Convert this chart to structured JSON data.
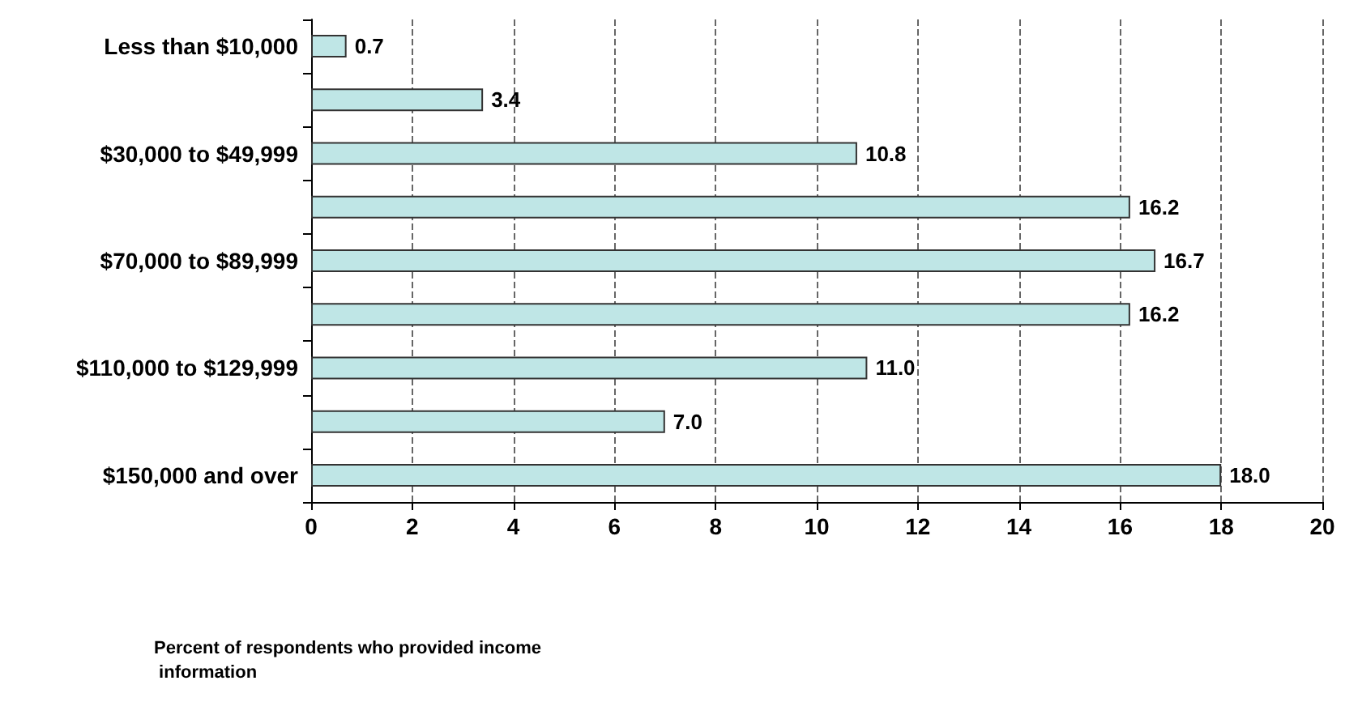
{
  "chart_data": {
    "type": "bar",
    "orientation": "horizontal",
    "annotations": [
      "Percent of respondents who provided income information"
    ],
    "categories": [
      "Less than $10,000",
      null,
      "$30,000 to $49,999",
      null,
      "$70,000 to $89,999",
      null,
      "$110,000 to $129,999",
      null,
      "$150,000 and over"
    ],
    "values": [
      0.7,
      3.4,
      10.8,
      16.2,
      16.7,
      16.2,
      11.0,
      7.0,
      18.0
    ],
    "value_labels": [
      "0.7",
      "3.4",
      "10.8",
      "16.2",
      "16.7",
      "16.2",
      "11.0",
      "7.0",
      "18.0"
    ],
    "color": "#bfe6e6",
    "xlim": [
      0,
      20
    ],
    "xticks": [
      0,
      2,
      4,
      6,
      8,
      10,
      12,
      14,
      16,
      18,
      20
    ],
    "grid": "x"
  }
}
